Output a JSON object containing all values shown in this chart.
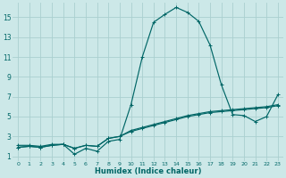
{
  "xlabel": "Humidex (Indice chaleur)",
  "bg_color": "#cce8e8",
  "grid_color": "#aacfcf",
  "line_color": "#006666",
  "xlim": [
    -0.5,
    23.5
  ],
  "ylim": [
    0.5,
    16.5
  ],
  "yticks": [
    1,
    3,
    5,
    7,
    9,
    11,
    13,
    15
  ],
  "xticks": [
    0,
    1,
    2,
    3,
    4,
    5,
    6,
    7,
    8,
    9,
    10,
    11,
    12,
    13,
    14,
    15,
    16,
    17,
    18,
    19,
    20,
    21,
    22,
    23
  ],
  "line1_x": [
    0,
    1,
    2,
    3,
    4,
    5,
    6,
    7,
    8,
    9,
    10,
    11,
    12,
    13,
    14,
    15,
    16,
    17,
    18,
    19,
    20,
    21,
    22,
    23
  ],
  "line1_y": [
    2.1,
    2.1,
    2.0,
    2.2,
    2.2,
    1.2,
    1.8,
    1.5,
    2.5,
    2.7,
    6.2,
    11.0,
    14.5,
    15.3,
    16.0,
    15.5,
    14.6,
    12.2,
    8.2,
    5.2,
    5.1,
    4.5,
    5.0,
    7.2
  ],
  "line2_x": [
    0,
    1,
    2,
    3,
    4,
    5,
    6,
    7,
    8,
    9,
    10,
    11,
    12,
    13,
    14,
    15,
    16,
    17,
    18,
    19,
    20,
    21,
    22,
    23
  ],
  "line2_y": [
    1.9,
    2.0,
    1.9,
    2.1,
    2.2,
    1.8,
    2.1,
    2.0,
    2.8,
    3.0,
    3.5,
    3.8,
    4.1,
    4.4,
    4.7,
    5.0,
    5.2,
    5.4,
    5.5,
    5.6,
    5.7,
    5.8,
    5.9,
    6.1
  ],
  "line3_x": [
    0,
    1,
    2,
    3,
    4,
    5,
    6,
    7,
    8,
    9,
    10,
    11,
    12,
    13,
    14,
    15,
    16,
    17,
    18,
    19,
    20,
    21,
    22,
    23
  ],
  "line3_y": [
    1.9,
    2.0,
    1.9,
    2.1,
    2.2,
    1.8,
    2.1,
    2.0,
    2.8,
    3.0,
    3.6,
    3.9,
    4.2,
    4.5,
    4.8,
    5.1,
    5.3,
    5.5,
    5.6,
    5.7,
    5.8,
    5.9,
    6.0,
    6.2
  ]
}
